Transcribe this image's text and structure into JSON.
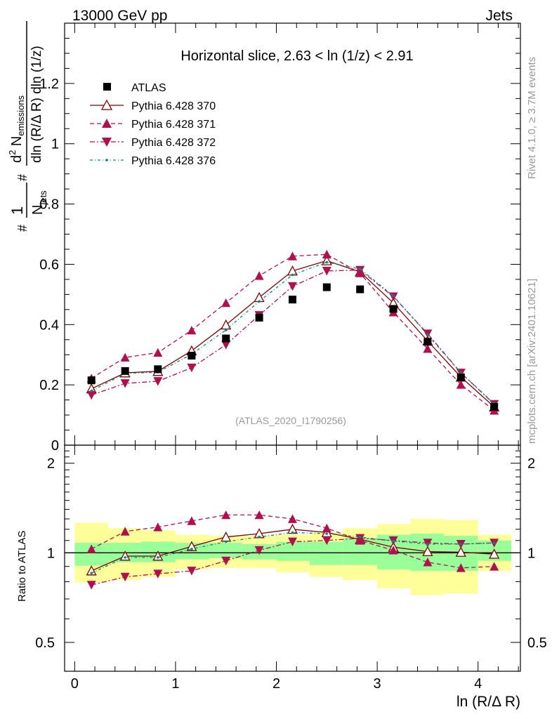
{
  "header": {
    "energy_label": "13000 GeV pp",
    "process_label": "Jets"
  },
  "side_labels": {
    "rivet": "Rivet 4.1.0, ≥ 3.7M events",
    "source": "mcplots.cern.ch [arXiv:2401.10621]"
  },
  "chart_data": {
    "type": "line",
    "title": "Horizontal slice, 2.63 < ln (1/z) < 2.91",
    "analysis_id": "(ATLAS_2020_I1790256)",
    "xlabel": "ln (R/Δ R)",
    "ylabel": "1/N_jets d²N_emissions / (dln(R/ΔR) dln(1/z))",
    "ylabel_parts": {
      "hash": "#",
      "one": "1",
      "n_main": "N",
      "n_sub": "jets",
      "num_main": "d",
      "num_sup": "2",
      "num_n": " N",
      "num_sub": "emissions",
      "den": "dln (R/Δ R) dln (1/z)"
    },
    "ratio_ylabel": "Ratio to ATLAS",
    "xlim": [
      -0.1,
      4.42
    ],
    "ylim_main": [
      0,
      1.4
    ],
    "ylim_ratio": [
      0.4,
      2.3
    ],
    "x_ticks": [
      0,
      1,
      2,
      3,
      4
    ],
    "x_tick_labels": [
      "0",
      "1",
      "2",
      "3",
      "4"
    ],
    "y_ticks_main": [
      0,
      0.2,
      0.4,
      0.6,
      0.8,
      1,
      1.2
    ],
    "y_tick_labels_main": [
      "0",
      "0.2",
      "0.4",
      "0.6",
      "0.8",
      "1",
      "1.2"
    ],
    "y_ticks_ratio": [
      0.5,
      1,
      2
    ],
    "y_tick_labels_ratio": [
      "0.5",
      "1",
      "2"
    ],
    "x": [
      0.166,
      0.5,
      0.825,
      1.16,
      1.5,
      1.83,
      2.16,
      2.5,
      2.83,
      3.16,
      3.5,
      3.83,
      4.16
    ],
    "bins": [
      [
        0,
        0.33
      ],
      [
        0.33,
        0.66
      ],
      [
        0.66,
        1.0
      ],
      [
        1.0,
        1.33
      ],
      [
        1.33,
        1.66
      ],
      [
        1.66,
        2.0
      ],
      [
        2.0,
        2.33
      ],
      [
        2.33,
        2.66
      ],
      [
        2.66,
        3.0
      ],
      [
        3.0,
        3.33
      ],
      [
        3.33,
        3.66
      ],
      [
        3.66,
        4.0
      ],
      [
        4.0,
        4.33
      ]
    ],
    "data": {
      "name": "ATLAS",
      "values": [
        0.215,
        0.246,
        0.252,
        0.297,
        0.354,
        0.423,
        0.483,
        0.524,
        0.517,
        0.452,
        0.343,
        0.225,
        0.127
      ],
      "band_stat": [
        [
          0.905,
          1.08
        ],
        [
          0.93,
          1.08
        ],
        [
          0.93,
          1.09
        ],
        [
          0.95,
          1.08
        ],
        [
          0.96,
          1.08
        ],
        [
          0.95,
          1.07
        ],
        [
          0.94,
          1.09
        ],
        [
          0.91,
          1.09
        ],
        [
          0.91,
          1.12
        ],
        [
          0.88,
          1.15
        ],
        [
          0.87,
          1.16
        ],
        [
          0.87,
          1.14
        ],
        [
          0.94,
          1.1
        ]
      ],
      "band_total": [
        [
          0.795,
          1.26
        ],
        [
          0.81,
          1.21
        ],
        [
          0.83,
          1.19
        ],
        [
          0.88,
          1.15
        ],
        [
          0.89,
          1.14
        ],
        [
          0.89,
          1.14
        ],
        [
          0.86,
          1.15
        ],
        [
          0.83,
          1.17
        ],
        [
          0.81,
          1.21
        ],
        [
          0.76,
          1.25
        ],
        [
          0.72,
          1.3
        ],
        [
          0.73,
          1.29
        ],
        [
          0.87,
          1.15
        ]
      ]
    },
    "series": [
      {
        "name": "Pythia 6.428 370",
        "color": "#800000",
        "dash": "",
        "marker": "triangle-up-open",
        "values": [
          0.187,
          0.24,
          0.245,
          0.313,
          0.399,
          0.49,
          0.578,
          0.612,
          0.575,
          0.472,
          0.346,
          0.226,
          0.127
        ],
        "ratio": [
          0.87,
          0.975,
          0.975,
          1.05,
          1.13,
          1.16,
          1.2,
          1.17,
          1.11,
          1.045,
          1.01,
          1.005,
          0.99
        ]
      },
      {
        "name": "Pythia 6.428 371",
        "color": "#b0104e",
        "dash": "6,4",
        "marker": "triangle-up-filled",
        "values": [
          0.222,
          0.291,
          0.307,
          0.381,
          0.472,
          0.562,
          0.627,
          0.633,
          0.571,
          0.441,
          0.32,
          0.201,
          0.115
        ],
        "ratio": [
          1.03,
          1.18,
          1.22,
          1.28,
          1.34,
          1.34,
          1.3,
          1.21,
          1.1,
          1.02,
          0.93,
          0.89,
          0.9
        ]
      },
      {
        "name": "Pythia 6.428 372",
        "color": "#b0104e",
        "dash": "7,3,2,3",
        "marker": "triangle-down-filled",
        "values": [
          0.166,
          0.205,
          0.212,
          0.257,
          0.333,
          0.431,
          0.527,
          0.578,
          0.581,
          0.493,
          0.37,
          0.24,
          0.136
        ],
        "ratio": [
          0.78,
          0.83,
          0.85,
          0.87,
          0.94,
          1.02,
          1.09,
          1.1,
          1.12,
          1.1,
          1.08,
          1.07,
          1.08
        ]
      },
      {
        "name": "Pythia 6.428 376",
        "color": "#008a77",
        "dash": "4,3,1,3",
        "marker": "dot",
        "values": [
          0.18,
          0.238,
          0.242,
          0.302,
          0.382,
          0.477,
          0.565,
          0.607,
          0.585,
          0.495,
          0.366,
          0.24,
          0.138
        ],
        "ratio": [
          0.855,
          0.965,
          0.965,
          1.03,
          1.09,
          1.13,
          1.17,
          1.16,
          1.13,
          1.095,
          1.07,
          1.07,
          1.08
        ]
      }
    ],
    "legend": {
      "position": "top-left",
      "data_label": "ATLAS",
      "entries": [
        "Pythia 6.428 370",
        "Pythia 6.428 371",
        "Pythia 6.428 372",
        "Pythia 6.428 376"
      ]
    },
    "colors": {
      "band_total": "#ffff99",
      "band_stat": "#99ff99",
      "data_marker": "#000000",
      "axis": "#000000",
      "watermark": "#999999"
    }
  }
}
